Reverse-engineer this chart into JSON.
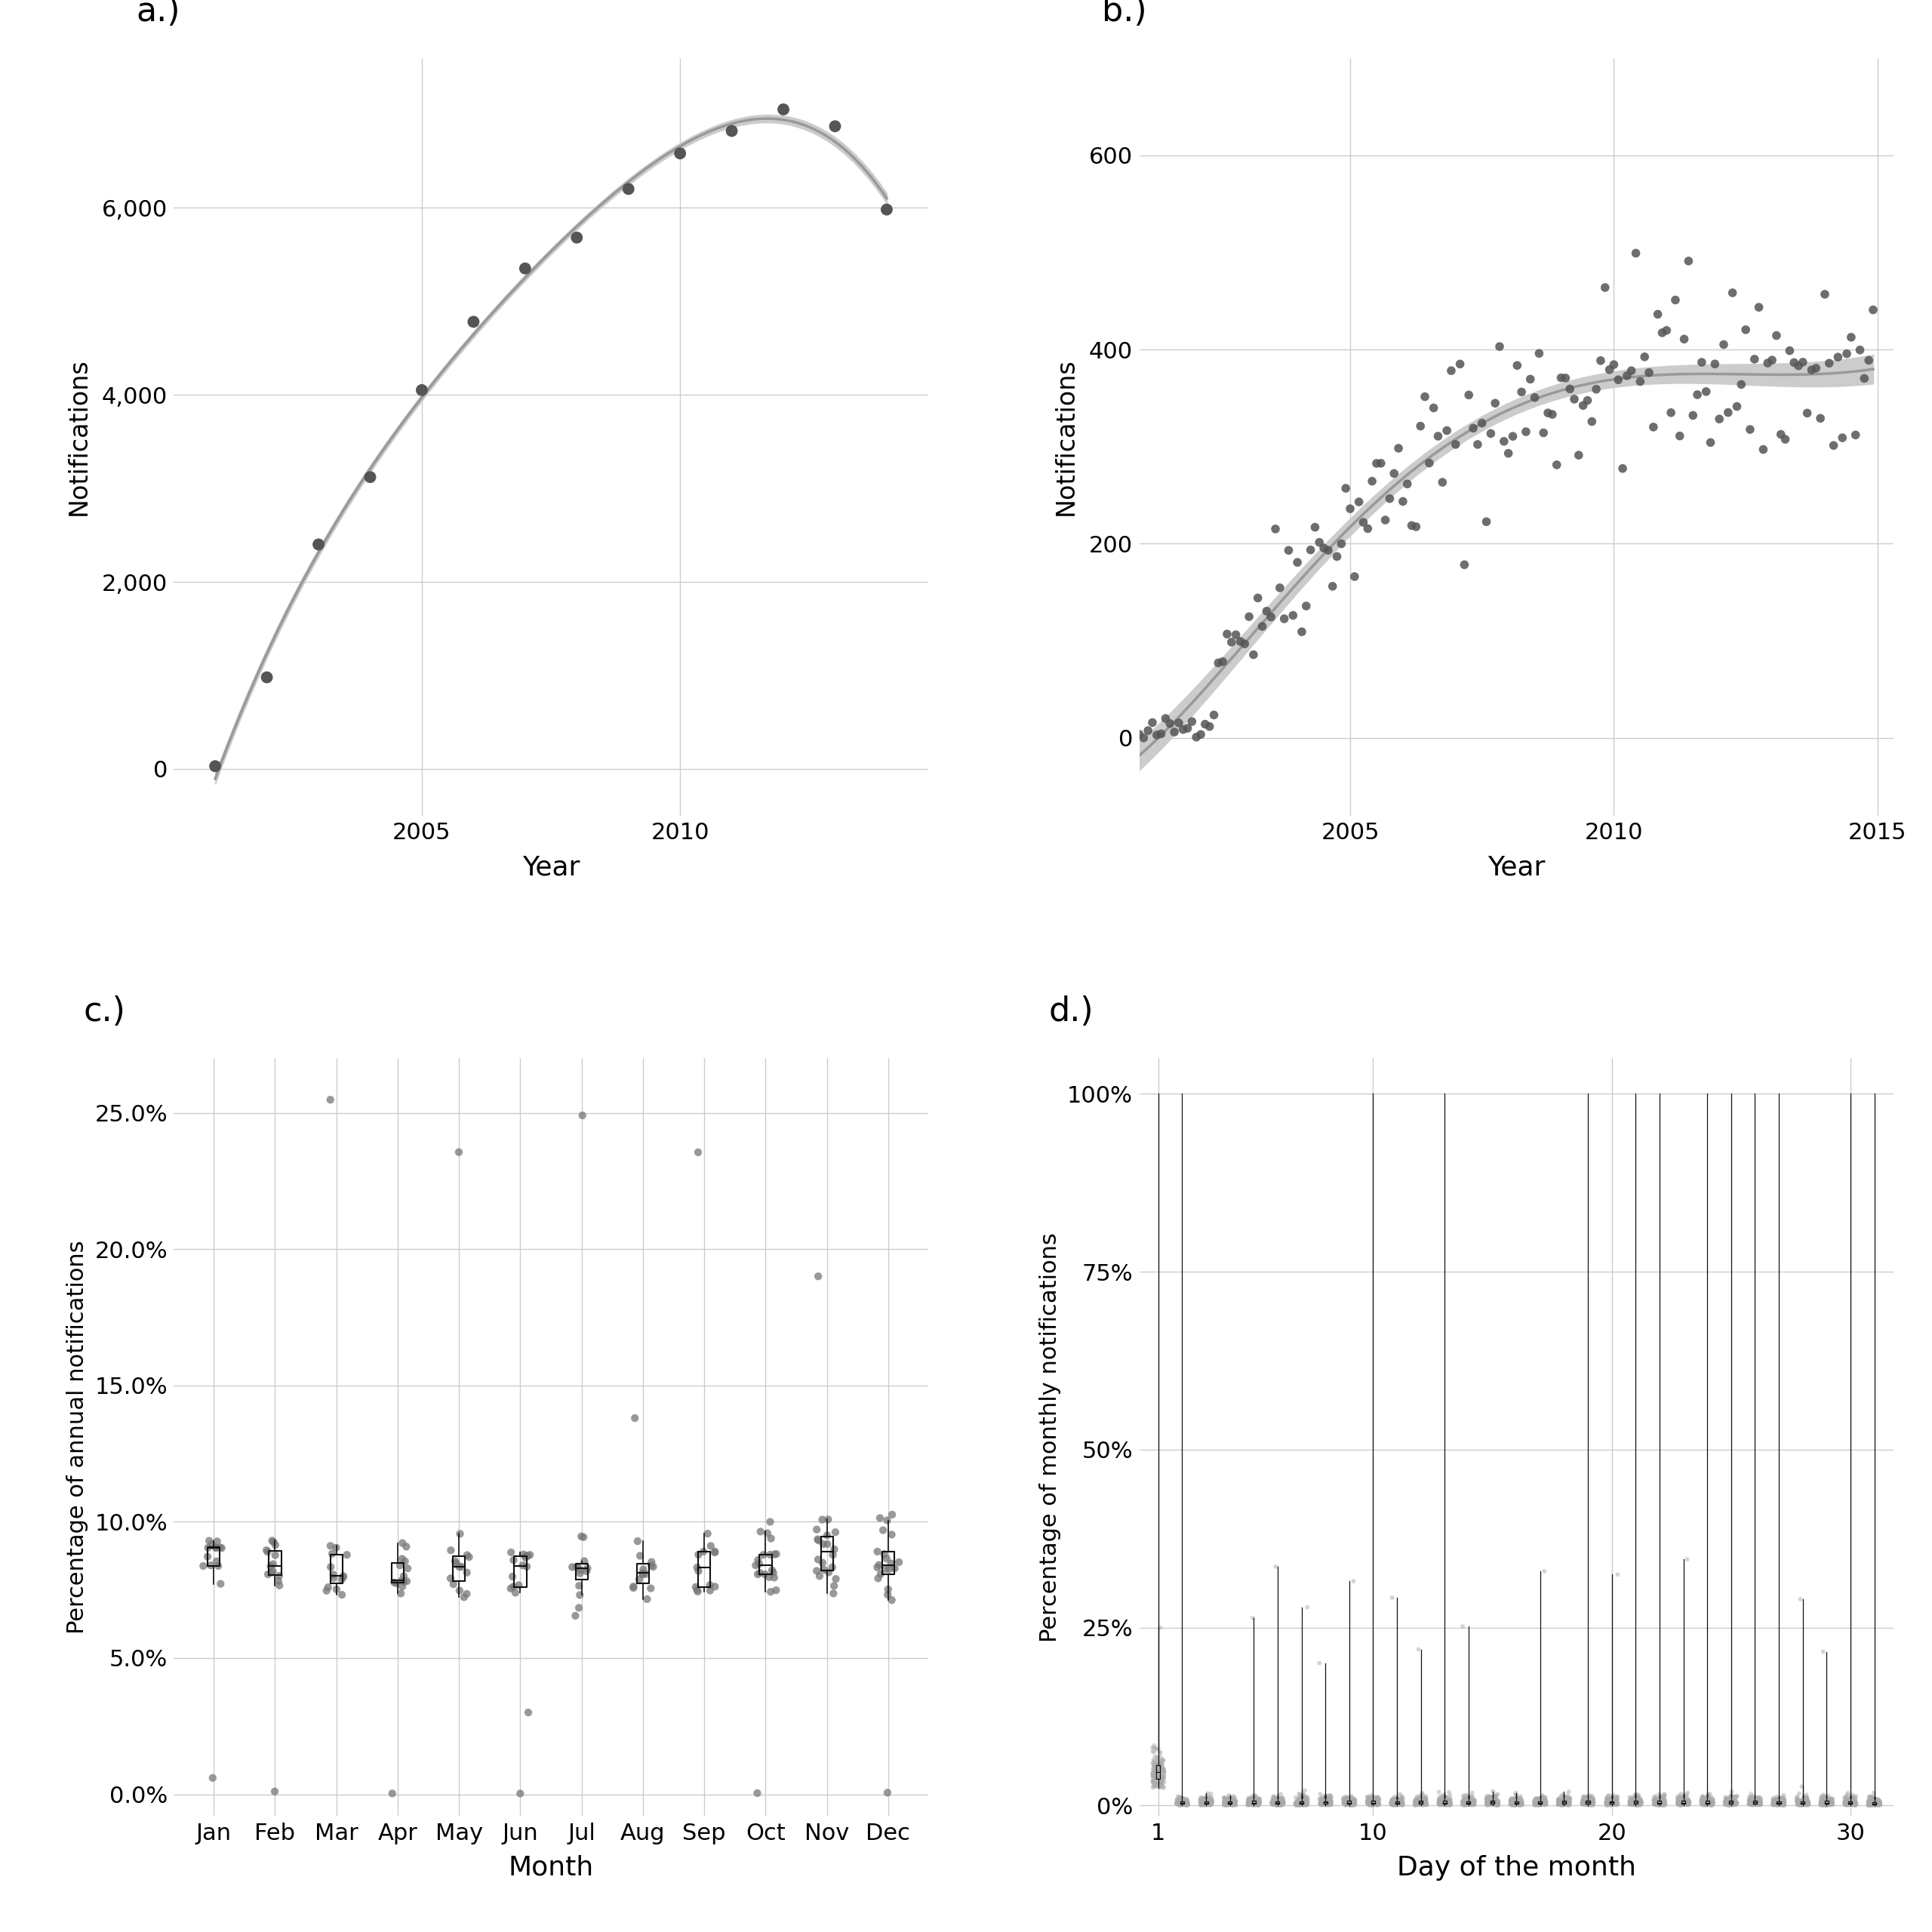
{
  "panel_labels": [
    "a.)",
    "b.)",
    "c.)",
    "d.)"
  ],
  "background_color": "#ffffff",
  "grid_color": "#cccccc",
  "point_color": "#555555",
  "point_color_d": "#aaaaaa",
  "violin_color": "#111111",
  "loess_fill": "#cccccc",
  "loess_line": "#999999",
  "panel_a": {
    "xlabel": "Year",
    "ylabel": "Notifications",
    "years": [
      2001,
      2002,
      2003,
      2004,
      2005,
      2006,
      2007,
      2008,
      2009,
      2010,
      2011,
      2012,
      2013,
      2014
    ],
    "values": [
      30,
      980,
      2400,
      3120,
      4050,
      4780,
      5350,
      5680,
      6200,
      6580,
      6820,
      7050,
      6870,
      5980
    ],
    "yticks": [
      0,
      2000,
      4000,
      6000
    ],
    "ylim": [
      -500,
      7600
    ],
    "xlim": [
      2000.2,
      2014.8
    ],
    "xticks": [
      2005,
      2010
    ]
  },
  "panel_b": {
    "xlabel": "Year",
    "ylabel": "Notifications",
    "ylim": [
      -80,
      700
    ],
    "yticks": [
      0,
      200,
      400,
      600
    ],
    "xlim": [
      2001.0,
      2015.3
    ],
    "xticks": [
      2005,
      2010,
      2015
    ]
  },
  "panel_c": {
    "xlabel": "Month",
    "ylabel": "Percentage of annual notifications",
    "months": [
      "Jan",
      "Feb",
      "Mar",
      "Apr",
      "May",
      "Jun",
      "Jul",
      "Aug",
      "Sep",
      "Oct",
      "Nov",
      "Dec"
    ],
    "ylim": [
      -0.008,
      0.27
    ],
    "yticks": [
      0.0,
      0.05,
      0.1,
      0.15,
      0.2,
      0.25
    ],
    "yticklabels": [
      "0.0%",
      "5.0%",
      "10.0%",
      "15.0%",
      "20.0%",
      "25.0%"
    ]
  },
  "panel_d": {
    "xlabel": "Day of the month",
    "ylabel": "Percentage of monthly notifications",
    "ylim": [
      -0.015,
      1.05
    ],
    "yticks": [
      0.0,
      0.25,
      0.5,
      0.75,
      1.0
    ],
    "yticklabels": [
      "0%",
      "25%",
      "50%",
      "75%",
      "100%"
    ],
    "xlim": [
      0.2,
      31.8
    ],
    "xticks": [
      1,
      10,
      20,
      30
    ]
  }
}
